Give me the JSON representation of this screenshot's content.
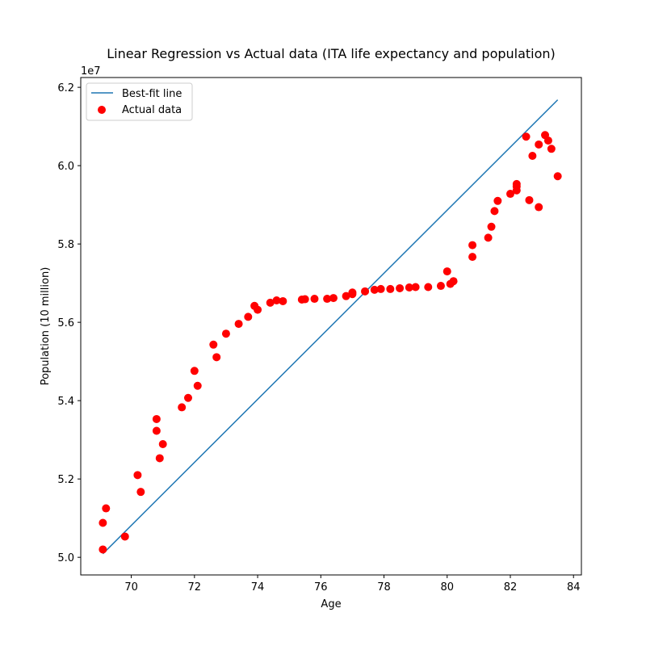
{
  "chart_data": {
    "type": "scatter",
    "title": "Linear Regression vs Actual data (ITA life expectancy and population)",
    "xlabel": "Age",
    "ylabel": "Population (10 million)",
    "y_offset_text": "1e7",
    "xlim": [
      68.4,
      84.25
    ],
    "ylim": [
      4.955,
      6.225
    ],
    "xticks": [
      70,
      72,
      74,
      76,
      78,
      80,
      82,
      84
    ],
    "xtick_labels": [
      "70",
      "72",
      "74",
      "76",
      "78",
      "80",
      "82",
      "84"
    ],
    "yticks": [
      5.0,
      5.2,
      5.4,
      5.6,
      5.8,
      6.0,
      6.2
    ],
    "ytick_labels": [
      "5.0",
      "5.2",
      "5.4",
      "5.6",
      "5.8",
      "6.0",
      "6.2"
    ],
    "grid": false,
    "legend_position": "top-left",
    "series": [
      {
        "name": "Best-fit line",
        "kind": "line",
        "color": "#1f77b4",
        "points": [
          [
            69.1,
            5.009
          ],
          [
            83.5,
            6.168
          ]
        ]
      },
      {
        "name": "Actual data",
        "kind": "scatter",
        "color": "#ff0000",
        "points": [
          [
            69.1,
            5.02
          ],
          [
            69.1,
            5.088
          ],
          [
            69.2,
            5.125
          ],
          [
            69.8,
            5.053
          ],
          [
            70.2,
            5.21
          ],
          [
            70.3,
            5.167
          ],
          [
            70.8,
            5.353
          ],
          [
            70.8,
            5.323
          ],
          [
            70.9,
            5.253
          ],
          [
            71.0,
            5.289
          ],
          [
            71.6,
            5.383
          ],
          [
            71.8,
            5.407
          ],
          [
            72.0,
            5.476
          ],
          [
            72.1,
            5.438
          ],
          [
            72.6,
            5.543
          ],
          [
            72.7,
            5.511
          ],
          [
            73.0,
            5.571
          ],
          [
            73.4,
            5.596
          ],
          [
            73.7,
            5.614
          ],
          [
            73.9,
            5.642
          ],
          [
            74.0,
            5.632
          ],
          [
            74.4,
            5.65
          ],
          [
            74.6,
            5.656
          ],
          [
            74.8,
            5.654
          ],
          [
            75.4,
            5.658
          ],
          [
            75.5,
            5.659
          ],
          [
            75.8,
            5.66
          ],
          [
            76.2,
            5.66
          ],
          [
            76.4,
            5.662
          ],
          [
            76.8,
            5.667
          ],
          [
            77.0,
            5.676
          ],
          [
            77.0,
            5.672
          ],
          [
            77.4,
            5.679
          ],
          [
            77.7,
            5.683
          ],
          [
            77.9,
            5.685
          ],
          [
            78.2,
            5.685
          ],
          [
            78.5,
            5.687
          ],
          [
            78.8,
            5.689
          ],
          [
            79.0,
            5.69
          ],
          [
            79.4,
            5.69
          ],
          [
            79.8,
            5.693
          ],
          [
            80.0,
            5.73
          ],
          [
            80.1,
            5.698
          ],
          [
            80.2,
            5.705
          ],
          [
            80.8,
            5.767
          ],
          [
            80.8,
            5.797
          ],
          [
            81.3,
            5.816
          ],
          [
            81.4,
            5.844
          ],
          [
            81.5,
            5.884
          ],
          [
            81.6,
            5.91
          ],
          [
            82.0,
            5.928
          ],
          [
            82.2,
            5.937
          ],
          [
            82.2,
            5.947
          ],
          [
            82.2,
            5.953
          ],
          [
            82.5,
            6.074
          ],
          [
            82.6,
            5.912
          ],
          [
            82.7,
            6.025
          ],
          [
            82.9,
            6.054
          ],
          [
            82.9,
            5.894
          ],
          [
            83.1,
            6.078
          ],
          [
            83.2,
            6.064
          ],
          [
            83.3,
            6.043
          ],
          [
            83.5,
            5.973
          ]
        ]
      }
    ]
  }
}
